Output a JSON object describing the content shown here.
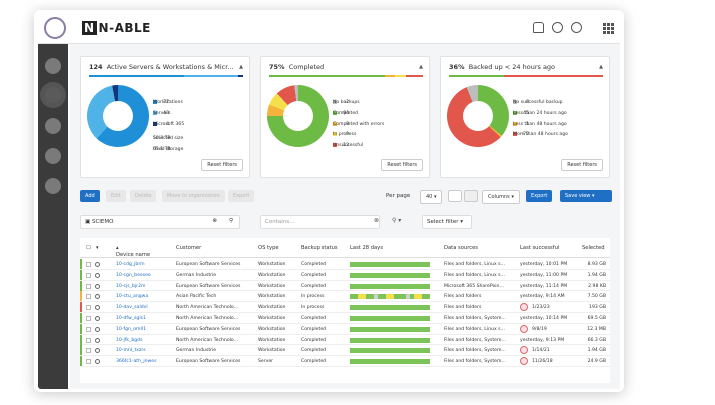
{
  "brand": {
    "name": "N-ABLE",
    "mark": "N"
  },
  "cards": [
    {
      "count": "124",
      "title": "Active Servers & Workstations & Micr...",
      "reset": "Reset filters",
      "legend": [
        {
          "num": "77",
          "label": "Workstations",
          "color": "#1f8fd8"
        },
        {
          "num": "43",
          "label": "Servers",
          "color": "#4fb3e8"
        },
        {
          "num": "4",
          "label": "Microsoft 365",
          "color": "#15357a"
        }
      ],
      "extra": [
        {
          "num": "50.3 TB",
          "label": "Selected size"
        },
        {
          "num": "65.1 TB",
          "label": "Used storage"
        }
      ],
      "bar": [
        {
          "color": "#1f8fd8",
          "frac": 0.62
        },
        {
          "color": "#4fb3e8",
          "frac": 0.35
        },
        {
          "color": "#15357a",
          "frac": 0.03
        }
      ],
      "donut": [
        {
          "color": "#1f8fd8",
          "frac": 0.62
        },
        {
          "color": "#4fb3e8",
          "frac": 0.35
        },
        {
          "color": "#15357a",
          "frac": 0.03
        }
      ]
    },
    {
      "count": "75%",
      "title": "Completed",
      "reset": "Reset filters",
      "legend": [
        {
          "num": "2",
          "label": "No backups",
          "color": "#bdbdbd"
        },
        {
          "num": "94",
          "label": "Completed",
          "color": "#6dbb45"
        },
        {
          "num": "8",
          "label": "Completed with errors",
          "color": "#f3b33d"
        },
        {
          "num": "9",
          "label": "In process",
          "color": "#f5e04b"
        },
        {
          "num": "13",
          "label": "Unsuccessful",
          "color": "#e2574c"
        }
      ],
      "bar": [
        {
          "color": "#6dbb45",
          "frac": 0.75
        },
        {
          "color": "#f3b33d",
          "frac": 0.07
        },
        {
          "color": "#f5e04b",
          "frac": 0.07
        },
        {
          "color": "#e2574c",
          "frac": 0.11
        }
      ],
      "donut": [
        {
          "color": "#6dbb45",
          "frac": 0.75
        },
        {
          "color": "#f3b33d",
          "frac": 0.06
        },
        {
          "color": "#f5e04b",
          "frac": 0.07
        },
        {
          "color": "#e2574c",
          "frac": 0.1
        },
        {
          "color": "#bdbdbd",
          "frac": 0.02
        }
      ]
    },
    {
      "count": "36%",
      "title": "Backed up < 24 hours ago",
      "reset": "Reset filters",
      "legend": [
        {
          "num": "8",
          "label": "No successful backup",
          "color": "#bdbdbd"
        },
        {
          "num": "45",
          "label": "Less than 24 hours ago",
          "color": "#6dbb45"
        },
        {
          "num": "1",
          "label": "Less than 48 hours ago",
          "color": "#f3b33d"
        },
        {
          "num": "72",
          "label": "More than 48 hours ago",
          "color": "#e2574c"
        }
      ],
      "bar": [
        {
          "color": "#6dbb45",
          "frac": 0.36
        },
        {
          "color": "#e2574c",
          "frac": 0.64
        }
      ],
      "donut": [
        {
          "color": "#6dbb45",
          "frac": 0.36
        },
        {
          "color": "#f3b33d",
          "frac": 0.01
        },
        {
          "color": "#e2574c",
          "frac": 0.57
        },
        {
          "color": "#bdbdbd",
          "frac": 0.06
        }
      ]
    }
  ],
  "toolbar": {
    "add": "Add",
    "ghosts": [
      "Edit",
      "Delete",
      "Move to organization",
      "Export"
    ],
    "per_page_label": "Per page",
    "per_page": "40",
    "columns": "Columns",
    "export": "Export",
    "save_view": "Save view"
  },
  "search": {
    "org": "SCIEMO",
    "contains": "Contains...",
    "select_filter": "Select filter"
  },
  "columns": [
    "Device name",
    "Customer",
    "OS type",
    "Backup status",
    "Last 28 days",
    "Data sources",
    "Last successful",
    "Selected"
  ],
  "rows": [
    {
      "edge": "#6dbb45",
      "device": "10-cdg_jbrm",
      "customer": "European Software Services",
      "os": "Workstation",
      "status": "Completed",
      "sources": "Files and folders, Linux s...",
      "last": "yesterday, 10:01 PM",
      "size": "8.93 GB",
      "alert": false
    },
    {
      "edge": "#6dbb45",
      "device": "10-cgn_beoseo",
      "customer": "German Industrie",
      "os": "Workstation",
      "status": "Completed",
      "sources": "Files and folders, Linux s...",
      "last": "yesterday, 11:00 PM",
      "size": "1.94 GB",
      "alert": false
    },
    {
      "edge": "#6dbb45",
      "device": "10-cjs_bjr2m",
      "customer": "European Software Services",
      "os": "Workstation",
      "status": "Completed",
      "sources": "Microsoft 365 SharePoin...",
      "last": "yesterday, 11:14 PM",
      "size": "2.98 KB",
      "alert": false
    },
    {
      "edge": "#f3b33d",
      "device": "10-ctu_angwa",
      "customer": "Asian Pacific Tech",
      "os": "Workstation",
      "status": "In process",
      "sources": "Files and folders",
      "last": "yesterday, 9:14 AM",
      "size": "7.50 GB",
      "alert": false
    },
    {
      "edge": "#e2574c",
      "device": "10-dav_saldvl",
      "customer": "North American Technolo...",
      "os": "Workstation",
      "status": "In process",
      "sources": "Files and folders",
      "last": "1/23/23",
      "size": "193 GB",
      "alert": true
    },
    {
      "edge": "#6dbb45",
      "device": "10-dfw_sgls1",
      "customer": "North American Technolo...",
      "os": "Workstation",
      "status": "Completed",
      "sources": "Files and folders, System...",
      "last": "yesterday, 10:14 PM",
      "size": "69.5 GB",
      "alert": false
    },
    {
      "edge": "#6dbb45",
      "device": "10-fgn_omll1",
      "customer": "European Software Services",
      "os": "Workstation",
      "status": "Completed",
      "sources": "Files and folders, Linux s...",
      "last": "9/8/19",
      "size": "12.3 MB",
      "alert": true
    },
    {
      "edge": "#6dbb45",
      "device": "10-jfk_bgds",
      "customer": "North American Technolo...",
      "os": "Workstation",
      "status": "Completed",
      "sources": "Files and folders, System...",
      "last": "yesterday, 9:13 PM",
      "size": "66.3 GB",
      "alert": false
    },
    {
      "edge": "#6dbb45",
      "device": "10-mnl_txzrs",
      "customer": "German Industrie",
      "os": "Workstation",
      "status": "Completed",
      "sources": "Files and folders, System...",
      "last": "1/14/21",
      "size": "1.94 GB",
      "alert": true
    },
    {
      "edge": "#6dbb45",
      "device": "366fc1-ath_jnwes",
      "customer": "European Software Services",
      "os": "Server",
      "status": "Completed",
      "sources": "Files and folders, System...",
      "last": "11/26/18",
      "size": "24.9 GB",
      "alert": true
    }
  ],
  "history_patterns": [
    "gggggggggggggggggggg",
    "gggggggggggggggggggg",
    "gggggggggggggggggggg",
    "ggyyggxggyygggxgyygg",
    "gggggggggggggggggggg",
    "gggggggggggggggggggg",
    "gggggggggggggggggggg",
    "gggggggggggggggggggg",
    "gggggggggggggggggggg",
    "gggggggggggggggggggg"
  ]
}
